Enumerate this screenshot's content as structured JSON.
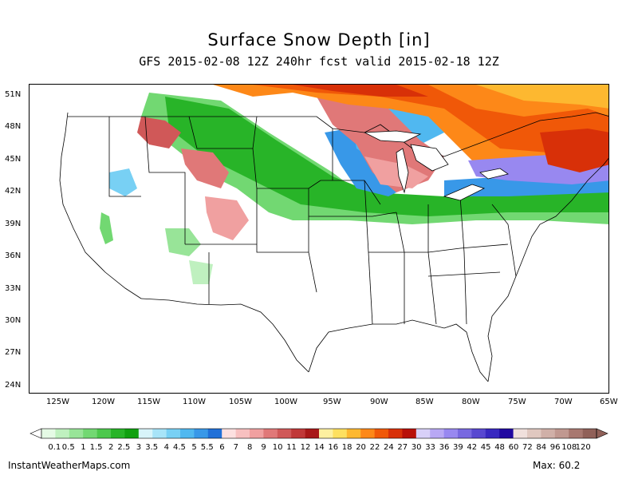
{
  "title": "Surface Snow Depth [in]",
  "subtitle": "GFS 2015-02-08 12Z 240hr fcst valid 2015-02-18 12Z",
  "latitude_labels": [
    "51N",
    "48N",
    "45N",
    "42N",
    "39N",
    "36N",
    "33N",
    "30N",
    "27N",
    "24N"
  ],
  "longitude_labels": [
    "125W",
    "120W",
    "115W",
    "110W",
    "105W",
    "100W",
    "95W",
    "90W",
    "85W",
    "80W",
    "75W",
    "70W",
    "65W"
  ],
  "legend": {
    "labels": [
      "0.1",
      "0.5",
      "1",
      "1.5",
      "2",
      "2.5",
      "3",
      "3.5",
      "4",
      "4.5",
      "5",
      "5.5",
      "6",
      "7",
      "8",
      "9",
      "10",
      "11",
      "12",
      "14",
      "16",
      "18",
      "20",
      "22",
      "24",
      "27",
      "30",
      "33",
      "36",
      "39",
      "42",
      "45",
      "48",
      "60",
      "72",
      "84",
      "96",
      "108",
      "120"
    ],
    "colors": [
      "#e5fae5",
      "#bff0bf",
      "#98e498",
      "#72d872",
      "#4cc84c",
      "#28b428",
      "#10a010",
      "#d8f4fa",
      "#a8e4f8",
      "#78d0f4",
      "#50b8f0",
      "#3898e8",
      "#2070d8",
      "#fde0e0",
      "#f8c0c0",
      "#f0a0a0",
      "#e07878",
      "#d05858",
      "#c03838",
      "#a81818",
      "#fdf0a0",
      "#fde060",
      "#fdb830",
      "#fd8818",
      "#f05808",
      "#d83008",
      "#b81008",
      "#d8d0f8",
      "#b8a8f4",
      "#9888f0",
      "#7868e0",
      "#5848d0",
      "#3828c0",
      "#2008a0",
      "#f0e0dc",
      "#e0c8c0",
      "#d0b0a8",
      "#c09890",
      "#a87870",
      "#906058"
    ]
  },
  "source": "InstantWeatherMaps.com",
  "max_label": "Max:  60.2"
}
